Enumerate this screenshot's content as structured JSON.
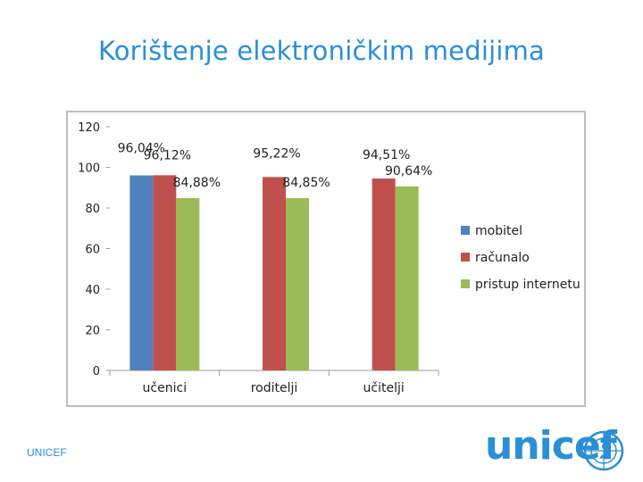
{
  "slide": {
    "title": "Korištenje elektroničkim medijima",
    "footer": "UNICEF",
    "logo_text": "unicef"
  },
  "colors": {
    "title": "#2a8fd6",
    "mobitel": "#4f81bd",
    "racunalo": "#c0504d",
    "internet": "#9bbb59"
  },
  "chart_data": {
    "type": "bar",
    "categories": [
      "učenici",
      "roditelji",
      "učitelji"
    ],
    "ylim": [
      0,
      120
    ],
    "yticks": [
      0,
      20,
      40,
      60,
      80,
      100,
      120
    ],
    "legend_position": "right",
    "series": [
      {
        "name": "mobitel",
        "color": "#4f81bd",
        "values": [
          96.04,
          null,
          null
        ],
        "labels": [
          "96,04%",
          "",
          ""
        ]
      },
      {
        "name": "računalo",
        "color": "#c0504d",
        "values": [
          96.12,
          95.22,
          94.51
        ],
        "labels": [
          "96,12%",
          "95,22%",
          "94,51%"
        ]
      },
      {
        "name": "pristup internetu",
        "color": "#9bbb59",
        "values": [
          84.88,
          84.85,
          90.64
        ],
        "labels": [
          "84,88%",
          "84,85%",
          "90,64%"
        ]
      }
    ]
  }
}
